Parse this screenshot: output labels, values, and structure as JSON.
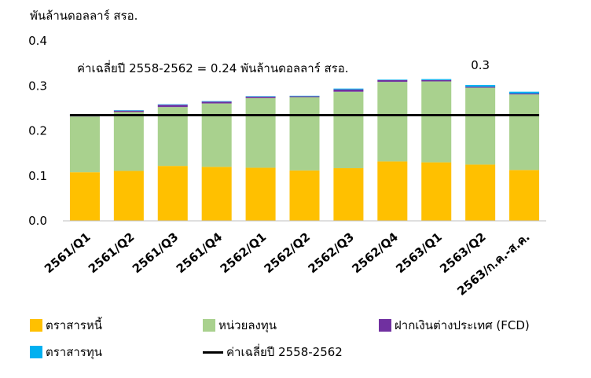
{
  "chart_data": {
    "type": "bar",
    "stacked": true,
    "unit_label": "พันล้านดอลลาร์ สรอ.",
    "categories": [
      "2561/Q1",
      "2561/Q2",
      "2561/Q3",
      "2561/Q4",
      "2562/Q1",
      "2562/Q2",
      "2562/Q3",
      "2562/Q4",
      "2563/Q1",
      "2563/Q2",
      "2563/ก.ค.-ส.ค."
    ],
    "series": [
      {
        "name": "ตราสารหนี้",
        "color": "#FFC000",
        "values": [
          0.108,
          0.111,
          0.122,
          0.12,
          0.118,
          0.112,
          0.117,
          0.132,
          0.13,
          0.125,
          0.113
        ]
      },
      {
        "name": "หน่วยลงทุน",
        "color": "#A9D18E",
        "values": [
          0.124,
          0.131,
          0.131,
          0.141,
          0.155,
          0.163,
          0.17,
          0.177,
          0.18,
          0.171,
          0.168
        ]
      },
      {
        "name": "ฝากเงินต่างประเทศ (FCD)",
        "color": "#7030A0",
        "values": [
          0.004,
          0.003,
          0.005,
          0.004,
          0.003,
          0.002,
          0.005,
          0.004,
          0.003,
          0.002,
          0.002
        ]
      },
      {
        "name": "ตราสารทุน",
        "color": "#00B0F0",
        "values": [
          0.001,
          0.001,
          0.001,
          0.001,
          0.001,
          0.001,
          0.002,
          0.001,
          0.002,
          0.004,
          0.004
        ]
      }
    ],
    "average": {
      "name": "ค่าเฉลี่ยปี 2558-2562",
      "value": 0.235,
      "color": "#000000"
    },
    "average_annotation": "ค่าเฉลี่ยปี 2558-2562 = 0.24 พันล้านดอลลาร์ สรอ.",
    "data_labels": [
      {
        "category": "2563/Q2",
        "text": "0.3"
      }
    ],
    "ylim": [
      0,
      0.4
    ],
    "yticks": [
      "0.0",
      "0.1",
      "0.2",
      "0.3",
      "0.4"
    ],
    "grid": false,
    "legend_position": "bottom"
  }
}
